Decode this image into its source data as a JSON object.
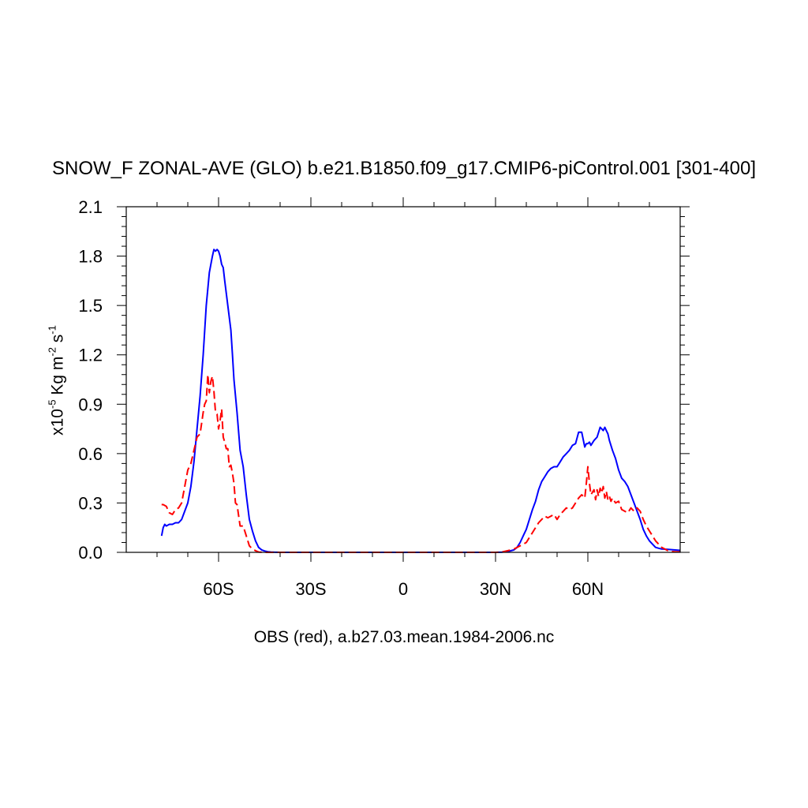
{
  "chart_data": {
    "type": "line",
    "title": "SNOW_F ZONAL-AVE (GLO) b.e21.B1850.f09_g17.CMIP6-piControl.001 [301-400]",
    "xlabel": "OBS (red), a.b27.03.mean.1984-2006.nc",
    "ylabel": {
      "prefix": "x10",
      "exp1": "-5",
      "unit1": " Kg m",
      "exp2": "-2",
      "unit2": " s",
      "exp3": "-1"
    },
    "xlim": [
      -90,
      90
    ],
    "ylim": [
      0,
      2.1
    ],
    "xticks": [
      {
        "value": -60,
        "label": "60S"
      },
      {
        "value": -30,
        "label": "30S"
      },
      {
        "value": 0,
        "label": "0"
      },
      {
        "value": 30,
        "label": "30N"
      },
      {
        "value": 60,
        "label": "60N"
      }
    ],
    "yticks": [
      {
        "value": 0.0,
        "label": "0.0"
      },
      {
        "value": 0.3,
        "label": "0.3"
      },
      {
        "value": 0.6,
        "label": "0.6"
      },
      {
        "value": 0.9,
        "label": "0.9"
      },
      {
        "value": 1.2,
        "label": "1.2"
      },
      {
        "value": 1.5,
        "label": "1.5"
      },
      {
        "value": 1.8,
        "label": "1.8"
      },
      {
        "value": 2.1,
        "label": "2.1"
      }
    ],
    "series": [
      {
        "color": "#0000ff",
        "dash": "solid",
        "x": [
          -78.5,
          -78,
          -77.5,
          -77,
          -76,
          -75,
          -74,
          -73,
          -72,
          -71,
          -70,
          -69,
          -68,
          -67,
          -66,
          -65,
          -64,
          -63,
          -62,
          -61.5,
          -61,
          -60.5,
          -60,
          -59.5,
          -59,
          -58.5,
          -58,
          -57,
          -56,
          -55.5,
          -55,
          -54,
          -53,
          -52,
          -51,
          -50,
          -49,
          -48,
          -47,
          -46,
          -45,
          -44,
          -43,
          -42,
          -40,
          -35,
          -30,
          -20,
          -10,
          0,
          10,
          20,
          30,
          32,
          34,
          36,
          37,
          38,
          39,
          40,
          41,
          42,
          43,
          44,
          45,
          46,
          47,
          48,
          49,
          50,
          51,
          52,
          53,
          54,
          55,
          56,
          57,
          58,
          59,
          59.5,
          60,
          60.5,
          61,
          62,
          63,
          64,
          65,
          65.5,
          66,
          66.5,
          67,
          68,
          69,
          70,
          71,
          72,
          73,
          74,
          75,
          76,
          77,
          78,
          79,
          80,
          81,
          82,
          83,
          84,
          86,
          88,
          90
        ],
        "y": [
          0.1,
          0.15,
          0.17,
          0.16,
          0.17,
          0.17,
          0.18,
          0.18,
          0.2,
          0.25,
          0.3,
          0.4,
          0.55,
          0.75,
          0.95,
          1.2,
          1.5,
          1.7,
          1.8,
          1.84,
          1.83,
          1.84,
          1.83,
          1.8,
          1.75,
          1.73,
          1.65,
          1.5,
          1.35,
          1.2,
          1.05,
          0.85,
          0.62,
          0.52,
          0.35,
          0.2,
          0.13,
          0.07,
          0.03,
          0.015,
          0.008,
          0.004,
          0.002,
          0.001,
          0.0,
          0.0,
          0.0,
          0.0,
          0.0,
          0.0,
          0.0,
          0.0,
          0.0,
          0.001,
          0.005,
          0.015,
          0.03,
          0.06,
          0.1,
          0.14,
          0.2,
          0.26,
          0.31,
          0.38,
          0.43,
          0.46,
          0.49,
          0.51,
          0.52,
          0.52,
          0.55,
          0.58,
          0.6,
          0.62,
          0.65,
          0.66,
          0.73,
          0.73,
          0.64,
          0.66,
          0.66,
          0.67,
          0.65,
          0.68,
          0.7,
          0.76,
          0.74,
          0.76,
          0.74,
          0.72,
          0.68,
          0.62,
          0.57,
          0.5,
          0.45,
          0.43,
          0.4,
          0.35,
          0.3,
          0.25,
          0.2,
          0.14,
          0.1,
          0.07,
          0.05,
          0.03,
          0.025,
          0.02,
          0.018,
          0.015,
          0.012
        ]
      },
      {
        "color": "#ff0000",
        "dash": "dashed",
        "x": [
          -78.5,
          -78,
          -77,
          -76,
          -75,
          -74,
          -73,
          -72,
          -71,
          -70,
          -69,
          -68,
          -67,
          -66,
          -65,
          -64.5,
          -64,
          -63.5,
          -63,
          -62.5,
          -62,
          -61.5,
          -61,
          -60.5,
          -60,
          -59.5,
          -59,
          -58.5,
          -58,
          -57.5,
          -57,
          -56.5,
          -56,
          -55.5,
          -55,
          -54.5,
          -54,
          -53,
          -52,
          -51,
          -50,
          -49,
          -48,
          -47,
          -45,
          -44,
          -40,
          -30,
          -20,
          -10,
          0,
          10,
          20,
          30,
          32,
          34,
          36,
          38,
          40,
          41,
          42,
          43,
          44,
          45,
          46,
          47,
          48,
          49,
          50,
          51,
          52,
          53,
          54,
          55,
          56,
          57,
          58,
          59,
          59.5,
          60,
          60.5,
          61,
          62,
          62.5,
          63,
          63.5,
          64,
          64.5,
          65,
          65.5,
          66,
          66.5,
          67,
          67.5,
          68,
          69,
          70,
          71,
          72,
          73,
          74,
          75,
          76,
          77,
          78,
          79,
          80,
          81,
          82,
          83,
          84,
          85,
          86,
          87,
          88,
          89,
          90
        ],
        "y": [
          0.29,
          0.29,
          0.28,
          0.24,
          0.23,
          0.26,
          0.27,
          0.3,
          0.4,
          0.5,
          0.54,
          0.62,
          0.7,
          0.72,
          0.85,
          0.9,
          0.92,
          1.08,
          0.97,
          1.04,
          1.07,
          0.98,
          0.85,
          0.84,
          0.75,
          0.8,
          0.87,
          0.7,
          0.67,
          0.63,
          0.63,
          0.52,
          0.53,
          0.48,
          0.42,
          0.3,
          0.29,
          0.16,
          0.16,
          0.1,
          0.04,
          0.02,
          0.01,
          0.002,
          0.0,
          0.0,
          0.0,
          0.0,
          0.0,
          0.0,
          0.0,
          0.0,
          0.0,
          0.0,
          0.002,
          0.01,
          0.02,
          0.04,
          0.06,
          0.09,
          0.12,
          0.15,
          0.18,
          0.2,
          0.22,
          0.21,
          0.22,
          0.23,
          0.2,
          0.23,
          0.25,
          0.27,
          0.26,
          0.27,
          0.3,
          0.33,
          0.35,
          0.33,
          0.42,
          0.52,
          0.42,
          0.35,
          0.38,
          0.32,
          0.38,
          0.34,
          0.39,
          0.36,
          0.4,
          0.33,
          0.37,
          0.32,
          0.34,
          0.31,
          0.33,
          0.3,
          0.31,
          0.26,
          0.25,
          0.24,
          0.27,
          0.25,
          0.27,
          0.25,
          0.2,
          0.16,
          0.13,
          0.1,
          0.07,
          0.05,
          0.03,
          0.02,
          0.01,
          0.005,
          0.004,
          0.003,
          0.003
        ]
      }
    ]
  }
}
